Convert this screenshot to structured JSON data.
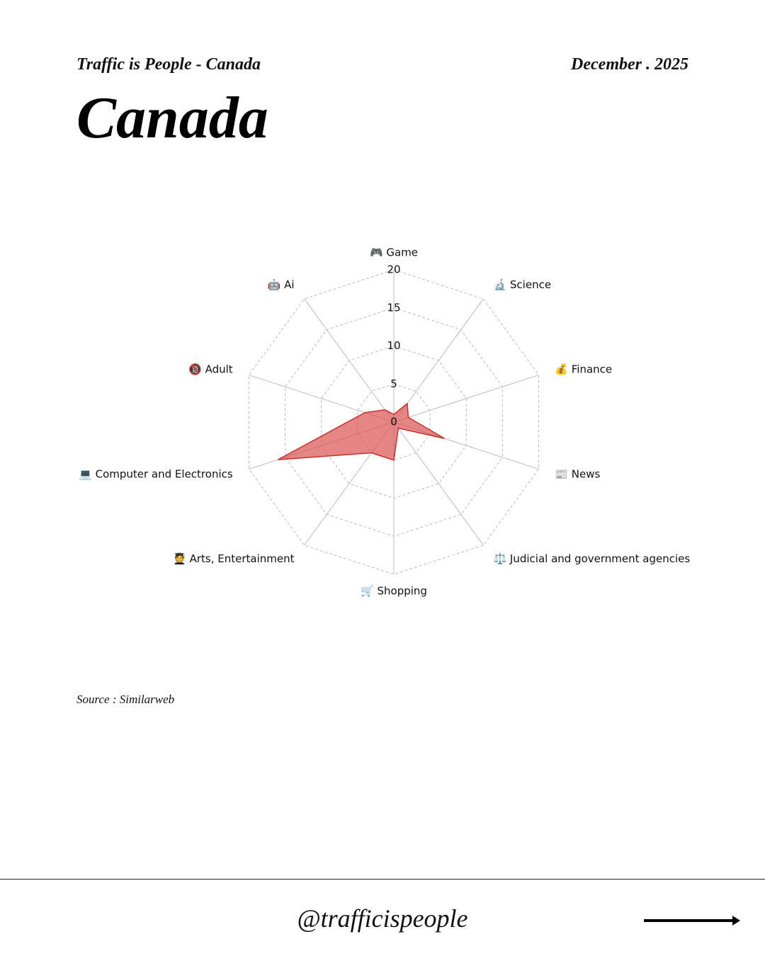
{
  "header": {
    "brand": "Traffic is People - Canada",
    "date": "December . 2025"
  },
  "footer": {
    "source": "Source : Similarweb",
    "handle": "@trafficispeople"
  },
  "chart_data": {
    "type": "radar",
    "title": "Canada",
    "categories": [
      "🎮 Game",
      "🔬 Science",
      "💰 Finance",
      "📰 News",
      "⚖️ Judicial and government agencies",
      "🛒 Shopping",
      "🧑‍🎓 Arts, Entertainment",
      "💻 Computer and Electronics",
      "🔞 Adult",
      "🤖 Ai"
    ],
    "values": [
      1,
      3,
      2,
      7,
      1,
      5,
      5,
      16,
      4,
      2
    ],
    "color": "#d9534f",
    "ylim": [
      0,
      20
    ],
    "yticks": [
      0,
      5,
      10,
      15,
      20
    ],
    "grid": true
  }
}
